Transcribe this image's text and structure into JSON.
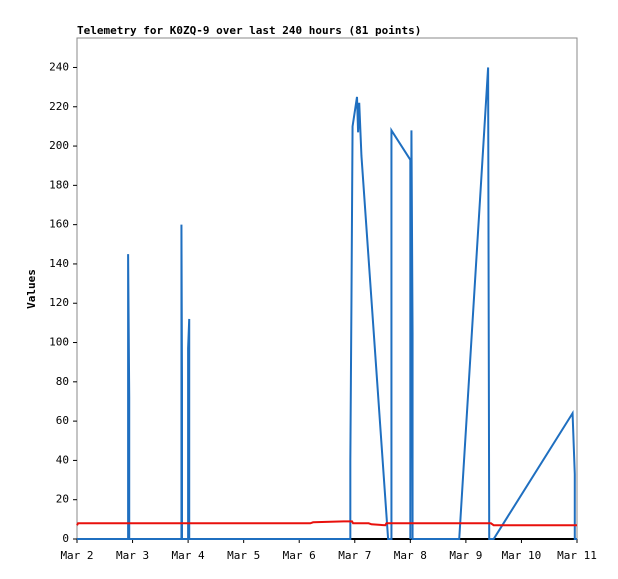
{
  "chart_data": {
    "type": "line",
    "title": "Telemetry for K0ZQ-9 over last 240 hours (81 points)",
    "y_label": "Values",
    "xlim": [
      2,
      11
    ],
    "xticks": [
      {
        "value": 2,
        "label": "Mar 2"
      },
      {
        "value": 3,
        "label": "Mar 3"
      },
      {
        "value": 4,
        "label": "Mar 4"
      },
      {
        "value": 5,
        "label": "Mar 5"
      },
      {
        "value": 6,
        "label": "Mar 6"
      },
      {
        "value": 7,
        "label": "Mar 7"
      },
      {
        "value": 8,
        "label": "Mar 8"
      },
      {
        "value": 9,
        "label": "Mar 9"
      },
      {
        "value": 10,
        "label": "Mar 10"
      },
      {
        "value": 11,
        "label": "Mar 11"
      }
    ],
    "ylim": [
      0,
      255
    ],
    "yticks": [
      0,
      20,
      40,
      60,
      80,
      100,
      120,
      140,
      160,
      180,
      200,
      220,
      240
    ],
    "series": [
      {
        "color": "#1f6fc0",
        "x": [
          2,
          2.92,
          2.92,
          2.94,
          2.94,
          3.88,
          3.88,
          3.89,
          3.89,
          4.0,
          4.0,
          4.02,
          4.02,
          6.92,
          6.92,
          6.94,
          6.96,
          7.04,
          7.06,
          7.08,
          7.12,
          7.6,
          7.66,
          7.66,
          8.0,
          8.0,
          8.02,
          8.04,
          8.04,
          8.88,
          9.4,
          9.42,
          9.5,
          10.92,
          10.96,
          10.96,
          11
        ],
        "values": [
          0,
          0,
          145,
          72,
          0,
          0,
          160,
          80,
          0,
          0,
          97,
          112,
          0,
          0,
          40,
          120,
          210,
          225,
          207,
          222,
          195,
          0,
          0,
          208,
          193,
          0,
          208,
          105,
          0,
          0,
          240,
          0,
          0,
          64,
          33,
          0,
          0
        ]
      },
      {
        "color": "#e8100c",
        "x": [
          2,
          2.02,
          6.2,
          6.25,
          6.8,
          6.95,
          6.97,
          7.25,
          7.3,
          7.55,
          7.57,
          9.45,
          9.5,
          11
        ],
        "values": [
          7,
          8,
          8,
          8.5,
          9,
          9,
          8,
          8,
          7.5,
          7,
          8,
          8,
          7,
          7
        ]
      }
    ]
  }
}
